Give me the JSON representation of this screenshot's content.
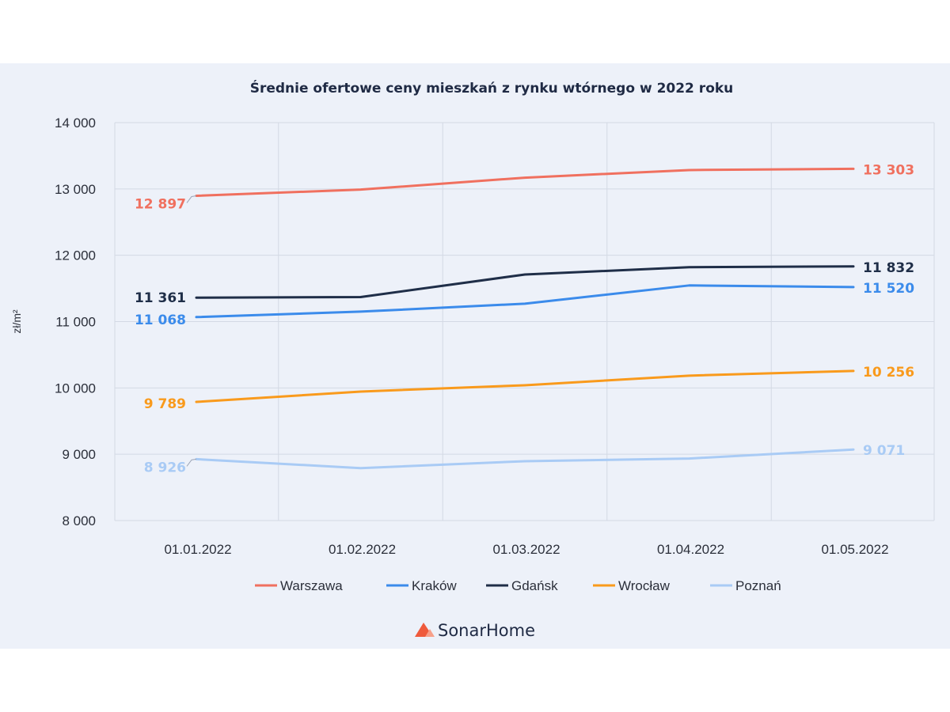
{
  "chart_data": {
    "type": "line",
    "title": "Średnie ofertowe ceny mieszkań z rynku wtórnego w 2022 roku",
    "xlabel": "",
    "ylabel": "zł/m²",
    "categories": [
      "01.01.2022",
      "01.02.2022",
      "01.03.2022",
      "01.04.2022",
      "01.05.2022"
    ],
    "ylim": [
      8000,
      14000
    ],
    "yticks": [
      8000,
      9000,
      10000,
      11000,
      12000,
      13000,
      14000
    ],
    "ytick_labels": [
      "8 000",
      "9 000",
      "10 000",
      "11 000",
      "12 000",
      "13 000",
      "14 000"
    ],
    "grid": "vertical and horizontal",
    "legend_position": "bottom",
    "series": [
      {
        "name": "Warszawa",
        "color": "#f0705f",
        "values": [
          12897,
          12990,
          13170,
          13285,
          13303
        ],
        "first_label": "12 897",
        "last_label": "13 303"
      },
      {
        "name": "Kraków",
        "color": "#3b8beb",
        "values": [
          11068,
          11150,
          11270,
          11545,
          11520
        ],
        "first_label": "11 068",
        "last_label": "11 520"
      },
      {
        "name": "Gdańsk",
        "color": "#1f2e48",
        "values": [
          11361,
          11370,
          11710,
          11820,
          11832
        ],
        "first_label": "11 361",
        "last_label": "11 832"
      },
      {
        "name": "Wrocław",
        "color": "#f99a1c",
        "values": [
          9789,
          9945,
          10040,
          10185,
          10256
        ],
        "first_label": "9 789",
        "last_label": "10 256"
      },
      {
        "name": "Poznań",
        "color": "#a9cbf5",
        "values": [
          8926,
          8790,
          8895,
          8935,
          9071
        ],
        "first_label": "8 926",
        "last_label": "9 071"
      }
    ]
  },
  "brand": {
    "name": "SonarHome",
    "accent": "#ef5a3c"
  }
}
